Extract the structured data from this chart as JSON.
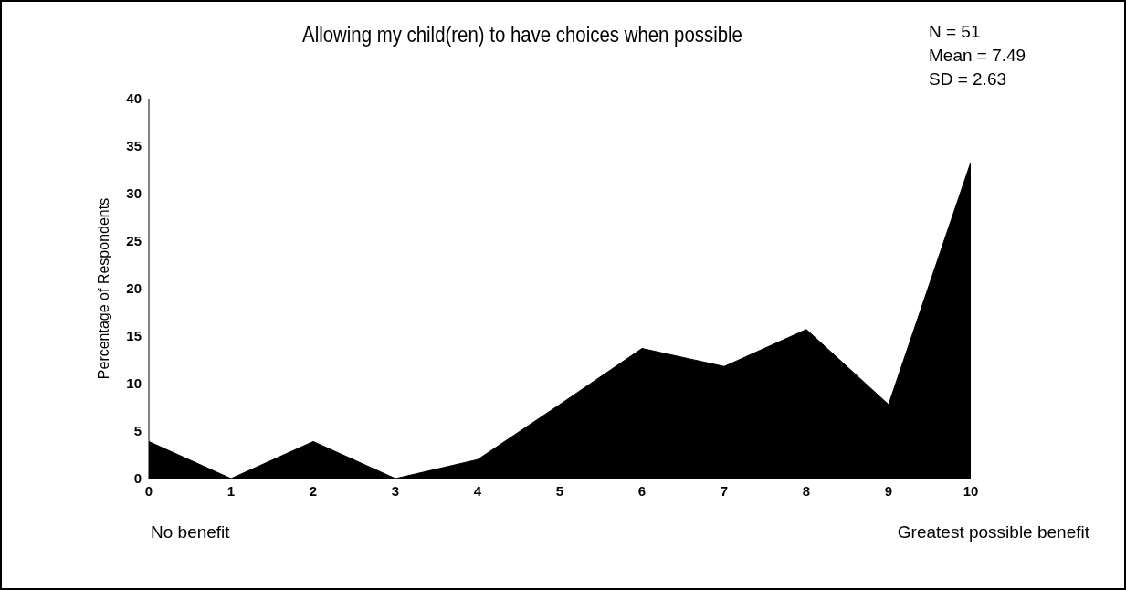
{
  "chart_data": {
    "type": "area",
    "title": "Allowing my child(ren) to have choices when possible",
    "ylabel": "Percentage of Respondents",
    "annotations": [
      "N = 51",
      "Mean = 7.49",
      "SD = 2.63",
      "No benefit",
      "Greatest possible benefit"
    ],
    "x": [
      0,
      1,
      2,
      3,
      4,
      5,
      6,
      7,
      8,
      9,
      10
    ],
    "series": [
      {
        "color": "#000000",
        "values": [
          3.9,
          0,
          3.9,
          0,
          2.0,
          7.8,
          13.7,
          11.8,
          15.7,
          7.8,
          33.3
        ]
      }
    ],
    "xlim": [
      0,
      10
    ],
    "xticks": [
      0,
      1,
      2,
      3,
      4,
      5,
      6,
      7,
      8,
      9,
      10
    ],
    "ylim": [
      0,
      40
    ],
    "yticks": [
      0,
      5,
      10,
      15,
      20,
      25,
      30,
      35,
      40
    ],
    "grid": false,
    "legend": false
  }
}
